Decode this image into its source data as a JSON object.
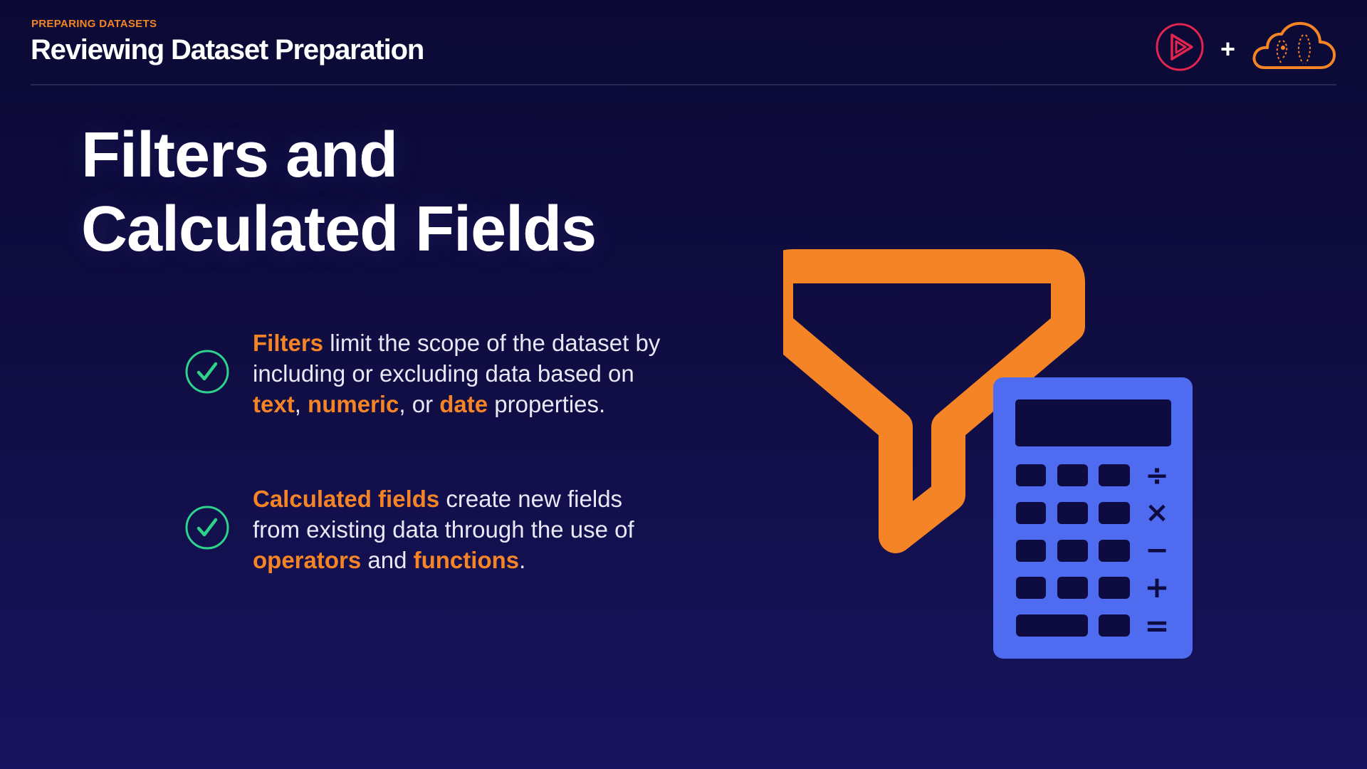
{
  "header": {
    "kicker": "PREPARING DATASETS",
    "title": "Reviewing Dataset Preparation",
    "logos": {
      "play_logo": "play-logo-icon",
      "plus": "+",
      "cloud_logo": "cloud-logo-icon"
    }
  },
  "slide": {
    "title_line_1": "Filters and",
    "title_line_2": "Calculated Fields"
  },
  "bullets": [
    {
      "icon": "check-circle-icon",
      "segments": {
        "s1": "Filters",
        "s2": " limit the scope of the dataset by",
        "s3": "including or excluding data based on",
        "s4": "text",
        "s5": ", ",
        "s6": "numeric",
        "s7": ", or ",
        "s8": "date",
        "s9": " properties."
      }
    },
    {
      "icon": "check-circle-icon",
      "segments": {
        "s1": "Calculated fields",
        "s2": " create new fields",
        "s3": "from existing data through the use of",
        "s4": "operators",
        "s5": " and ",
        "s6": "functions",
        "s7": "."
      }
    }
  ],
  "illustration": {
    "funnel": "funnel-icon",
    "calculator": "calculator-icon",
    "calculator_keys": {
      "divide": "÷",
      "multiply": "×",
      "minus": "−",
      "plus": "+",
      "equals": "="
    }
  },
  "colors": {
    "accent_orange": "#f48426",
    "check_green": "#2ed38b",
    "calculator_blue": "#4f6cf0",
    "play_red": "#e2254e",
    "background_dark": "#0b0934"
  }
}
